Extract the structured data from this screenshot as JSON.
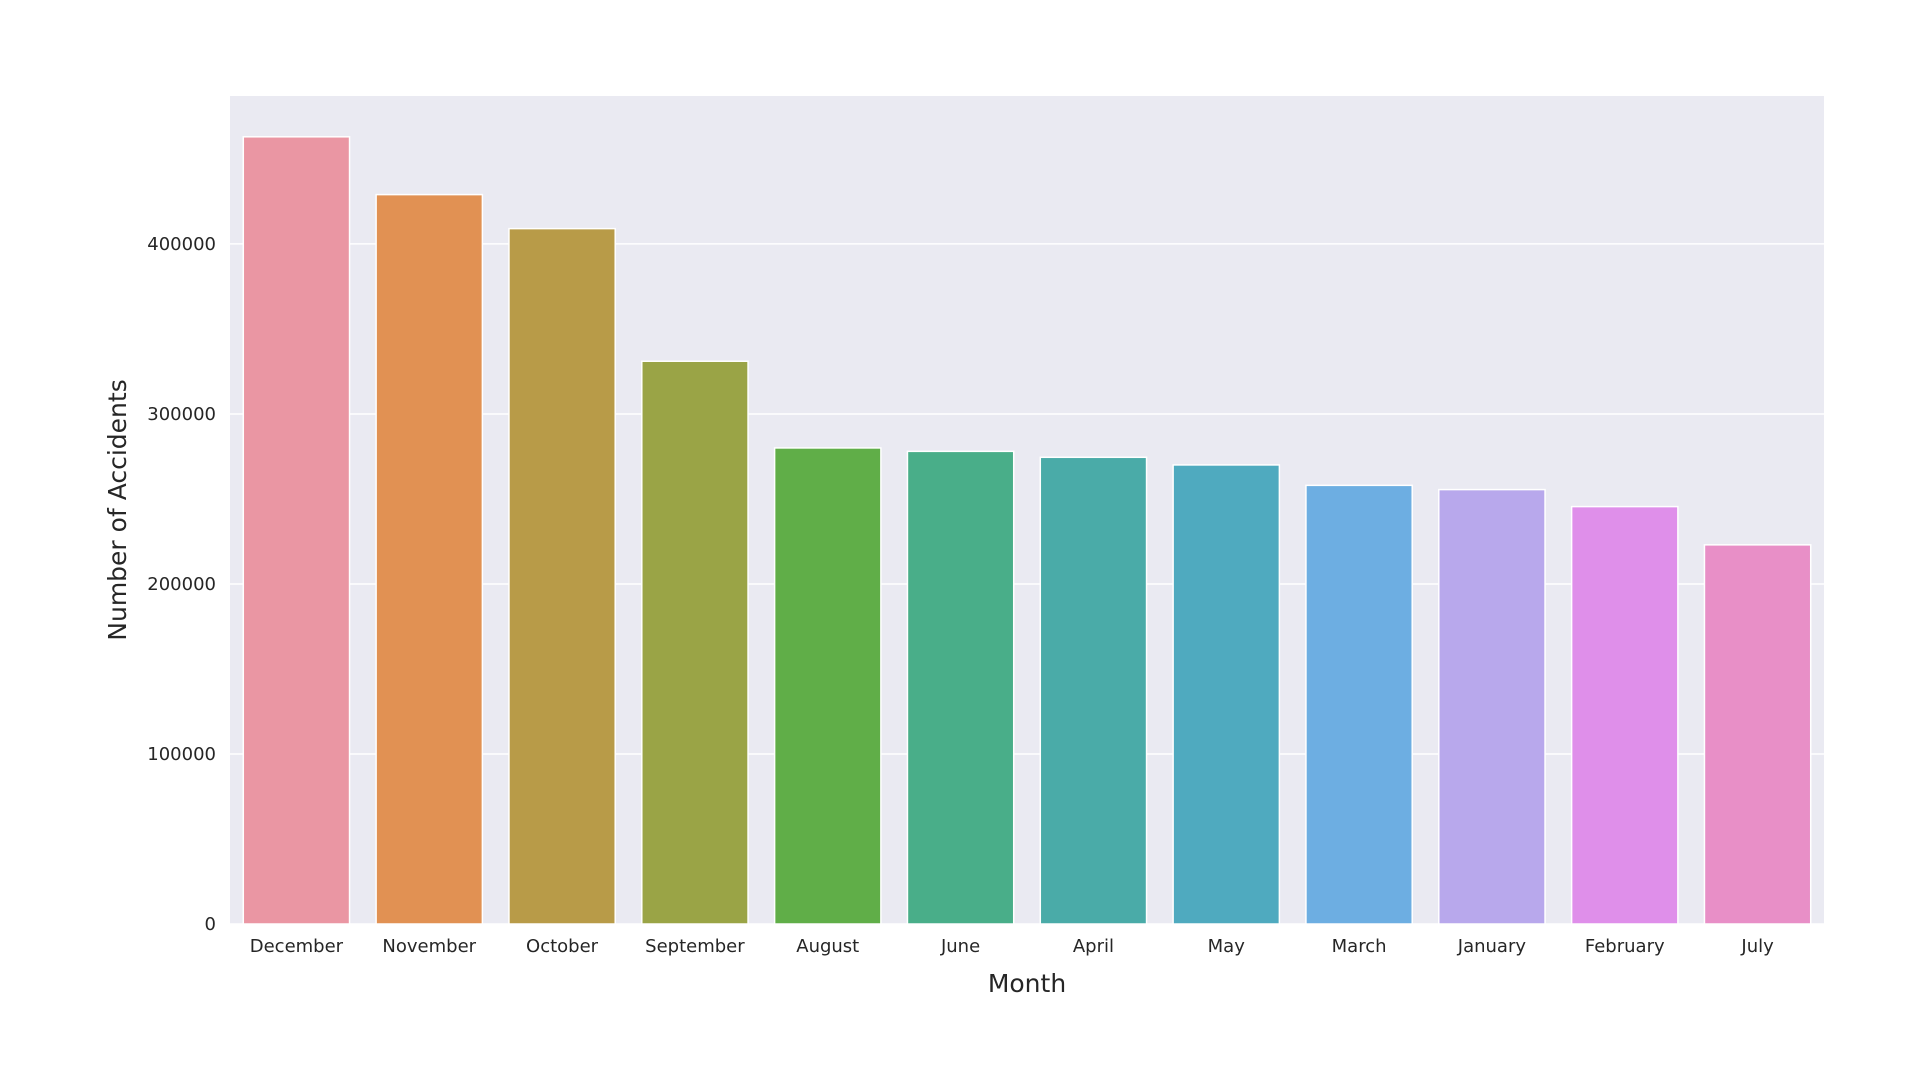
{
  "chart_data": {
    "type": "bar",
    "title": "",
    "xlabel": "Month",
    "ylabel": "Number of Accidents",
    "categories": [
      "December",
      "November",
      "October",
      "September",
      "August",
      "June",
      "April",
      "May",
      "March",
      "January",
      "February",
      "July"
    ],
    "values": [
      463000,
      429000,
      409000,
      331000,
      280000,
      278000,
      274500,
      270000,
      258000,
      255500,
      245500,
      223000
    ],
    "colors": [
      "#ea96a3",
      "#e19153",
      "#b89b48",
      "#9aa446",
      "#60ae48",
      "#49ae89",
      "#4aaba8",
      "#4faabf",
      "#6daee2",
      "#b8a8ec",
      "#df8fea",
      "#e88fc7"
    ],
    "ylim": [
      0,
      487000
    ],
    "yticks": [
      0,
      100000,
      200000,
      300000,
      400000
    ],
    "ytick_labels": [
      "0",
      "100000",
      "200000",
      "300000",
      "400000"
    ],
    "grid": true,
    "plot_background": "#eaeaf2",
    "grid_color": "#ffffff"
  }
}
